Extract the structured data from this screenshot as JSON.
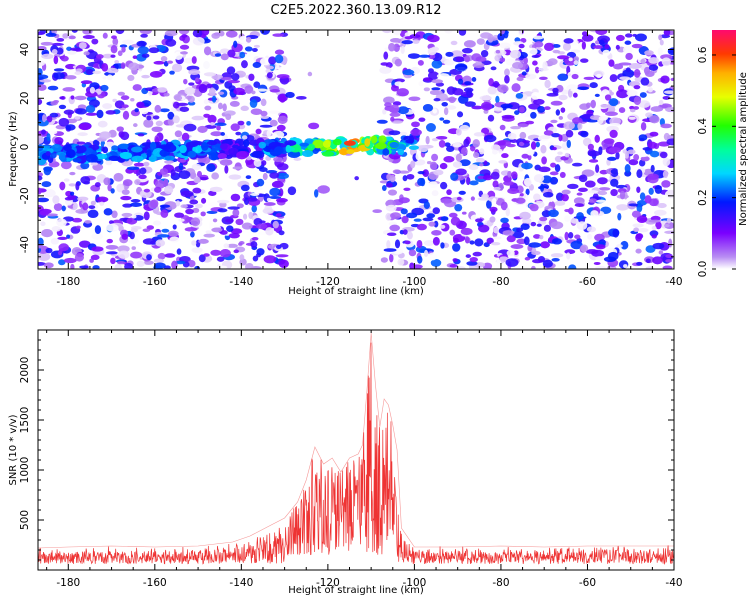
{
  "figure": {
    "title": "C2E5.2022.360.13.09.R12"
  },
  "chart_data": [
    {
      "type": "heatmap",
      "xlabel": "Height of straight line (km)",
      "ylabel": "Frequency (Hz)",
      "xlim": [
        -187,
        -40
      ],
      "ylim": [
        -50,
        48
      ],
      "xticks": [
        -180,
        -160,
        -140,
        -120,
        -100,
        -80,
        -60,
        -40
      ],
      "yticks": [
        -40,
        -20,
        0,
        20,
        40
      ],
      "colormap": "rainbow (violet to red)",
      "colorbar": {
        "label": "Normalized spectral amplitude",
        "range": [
          0,
          0.67
        ],
        "ticks": [
          0.0,
          0.2,
          0.4,
          0.6
        ]
      },
      "regions": [
        {
          "name": "noise-left",
          "x": [
            -187,
            -130
          ],
          "mean_amplitude": 0.05
        },
        {
          "name": "masked-gap",
          "x": [
            -130,
            -107
          ],
          "mean_amplitude": 0.0
        },
        {
          "name": "noise-right",
          "x": [
            -107,
            -40
          ],
          "mean_amplitude": 0.05
        }
      ],
      "signal_band": {
        "x": [
          -187,
          -100
        ],
        "frequency_hz": [
          -6,
          2
        ],
        "peak_height_km": -115,
        "peak_frequency_hz": -3,
        "peak_amplitude": 0.6
      }
    },
    {
      "type": "line",
      "xlabel": "Height of straight line (km)",
      "ylabel": "SNR (10 * v/v)",
      "xlim": [
        -187,
        -40
      ],
      "ylim": [
        0,
        2400
      ],
      "xticks": [
        -180,
        -160,
        -140,
        -120,
        -100,
        -80,
        -60,
        -40
      ],
      "yticks": [
        500,
        1000,
        1500,
        2000
      ],
      "color": "#ee3333",
      "series": [
        {
          "x": [
            -187,
            -180,
            -170,
            -160,
            -150,
            -142,
            -138,
            -134,
            -130,
            -127,
            -125,
            -123,
            -121,
            -119,
            -117,
            -115,
            -113,
            -112,
            -111,
            -110,
            -109,
            -108,
            -107,
            -106,
            -105,
            -104,
            -103,
            -100,
            -90,
            -80,
            -70,
            -60,
            -50,
            -40
          ],
          "y": [
            220,
            230,
            240,
            230,
            240,
            280,
            340,
            430,
            520,
            680,
            900,
            1230,
            1060,
            1120,
            980,
            1120,
            1160,
            1250,
            1780,
            2370,
            1850,
            1430,
            1710,
            1650,
            1450,
            1200,
            420,
            230,
            230,
            240,
            230,
            240,
            240,
            240
          ]
        }
      ]
    }
  ]
}
